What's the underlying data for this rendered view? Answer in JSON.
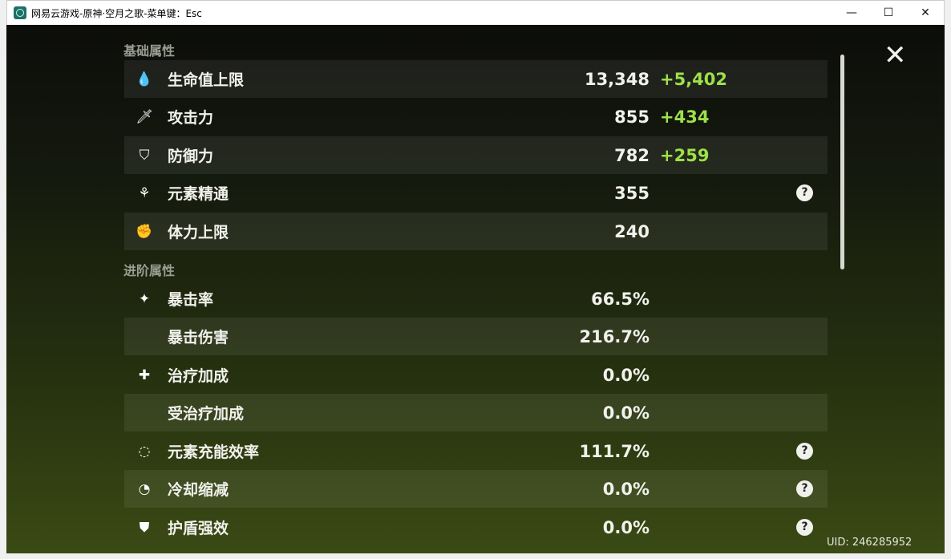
{
  "window": {
    "title": "网易云游戏-原神·空月之歌-菜单键：Esc",
    "minimize": "—",
    "maximize": "☐",
    "close": "✕"
  },
  "sections": {
    "basic": "基础属性",
    "advanced": "进阶属性"
  },
  "basic_stats": [
    {
      "icon": "hp-drop-icon",
      "glyph": "💧",
      "label": "生命值上限",
      "value": "13,348",
      "bonus": "+5,402",
      "help": false
    },
    {
      "icon": "attack-sword-icon",
      "glyph": "🗡",
      "label": "攻击力",
      "value": "855",
      "bonus": "+434",
      "help": false
    },
    {
      "icon": "defense-shield-icon",
      "glyph": "⛉",
      "label": "防御力",
      "value": "782",
      "bonus": "+259",
      "help": false
    },
    {
      "icon": "elemental-mastery-icon",
      "glyph": "⚘",
      "label": "元素精通",
      "value": "355",
      "bonus": "",
      "help": true
    },
    {
      "icon": "stamina-icon",
      "glyph": "✊",
      "label": "体力上限",
      "value": "240",
      "bonus": "",
      "help": false
    }
  ],
  "advanced_stats": [
    {
      "icon": "crit-rate-icon",
      "glyph": "✦",
      "label": "暴击率",
      "value": "66.5%",
      "help": false
    },
    {
      "icon": "",
      "glyph": "",
      "label": "暴击伤害",
      "value": "216.7%",
      "help": false
    },
    {
      "icon": "healing-cross-icon",
      "glyph": "✚",
      "label": "治疗加成",
      "value": "0.0%",
      "help": false
    },
    {
      "icon": "",
      "glyph": "",
      "label": "受治疗加成",
      "value": "0.0%",
      "help": false
    },
    {
      "icon": "energy-recharge-icon",
      "glyph": "◌",
      "label": "元素充能效率",
      "value": "111.7%",
      "help": true
    },
    {
      "icon": "cooldown-icon",
      "glyph": "◔",
      "label": "冷却缩减",
      "value": "0.0%",
      "help": true
    },
    {
      "icon": "shield-strength-icon",
      "glyph": "⛊",
      "label": "护盾强效",
      "value": "0.0%",
      "help": true
    }
  ],
  "help_glyph": "?",
  "close_glyph": "✕",
  "uid": "UID: 246285952",
  "colors": {
    "bonus": "#9ee04a",
    "text": "#f1f1ec"
  }
}
